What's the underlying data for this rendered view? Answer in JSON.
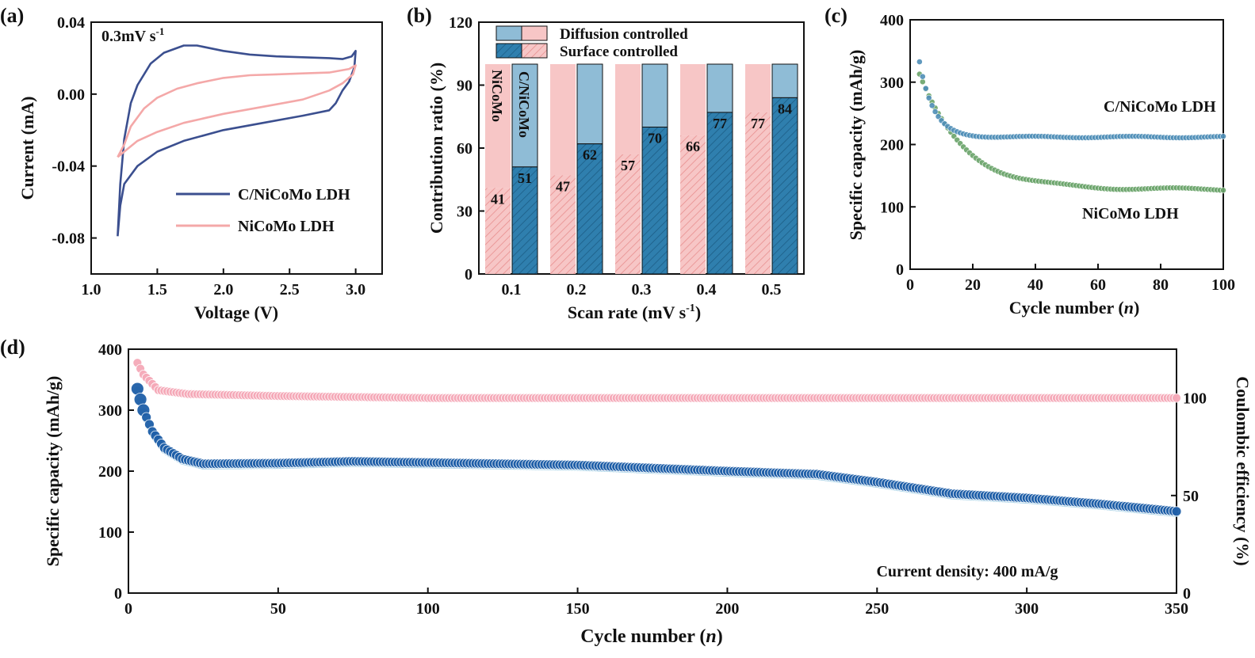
{
  "panels": {
    "a": {
      "letter": "(a)"
    },
    "b": {
      "letter": "(b)"
    },
    "c": {
      "letter": "(c)"
    },
    "d": {
      "letter": "(d)"
    }
  },
  "colors": {
    "blue_dark": "#3b4f8f",
    "pink": "#f4a8a8",
    "bar_pink": "#f7c6c6",
    "bar_pink_hatch": "#e88f8f",
    "bar_blue_light": "#8fbcd6",
    "bar_blue": "#2f7fae",
    "c_blue": "#4f8fb8",
    "c_green": "#6aa46a",
    "d_blue": "#1f5fa8",
    "d_pink": "#f5a9b8"
  },
  "chart_data": [
    {
      "id": "a",
      "type": "line",
      "xlabel": "Voltage (V)",
      "ylabel": "Current (mA)",
      "xlim": [
        1.0,
        3.2
      ],
      "ylim": [
        -0.1,
        0.04
      ],
      "xticks": [
        "1.0",
        "1.5",
        "2.0",
        "2.5",
        "3.0"
      ],
      "yticks": [
        "-0.08",
        "-0.04",
        "0.00",
        "0.04"
      ],
      "annotation_main": "0.3mV s",
      "annotation_sup": "-1",
      "legend": "bottom-right",
      "series": [
        {
          "name": "C/NiCoMo LDH",
          "points": [
            [
              1.2,
              -0.079
            ],
            [
              1.22,
              -0.05
            ],
            [
              1.25,
              -0.025
            ],
            [
              1.3,
              -0.005
            ],
            [
              1.35,
              0.005
            ],
            [
              1.45,
              0.017
            ],
            [
              1.55,
              0.023
            ],
            [
              1.7,
              0.027
            ],
            [
              1.8,
              0.027
            ],
            [
              2.0,
              0.024
            ],
            [
              2.2,
              0.022
            ],
            [
              2.4,
              0.021
            ],
            [
              2.6,
              0.0205
            ],
            [
              2.8,
              0.02
            ],
            [
              2.9,
              0.0195
            ],
            [
              2.97,
              0.021
            ],
            [
              3.0,
              0.024
            ],
            [
              2.99,
              0.015
            ],
            [
              2.95,
              0.007
            ],
            [
              2.9,
              0.002
            ],
            [
              2.85,
              -0.005
            ],
            [
              2.8,
              -0.009
            ],
            [
              2.6,
              -0.012
            ],
            [
              2.3,
              -0.016
            ],
            [
              2.0,
              -0.02
            ],
            [
              1.7,
              -0.026
            ],
            [
              1.5,
              -0.032
            ],
            [
              1.35,
              -0.04
            ],
            [
              1.25,
              -0.05
            ],
            [
              1.22,
              -0.062
            ],
            [
              1.2,
              -0.079
            ]
          ]
        },
        {
          "name": "NiCoMo LDH",
          "points": [
            [
              1.2,
              -0.035
            ],
            [
              1.25,
              -0.028
            ],
            [
              1.3,
              -0.018
            ],
            [
              1.4,
              -0.008
            ],
            [
              1.5,
              -0.002
            ],
            [
              1.65,
              0.003
            ],
            [
              1.8,
              0.006
            ],
            [
              2.0,
              0.009
            ],
            [
              2.2,
              0.0105
            ],
            [
              2.4,
              0.011
            ],
            [
              2.6,
              0.0115
            ],
            [
              2.8,
              0.012
            ],
            [
              2.95,
              0.014
            ],
            [
              3.0,
              0.016
            ],
            [
              2.98,
              0.011
            ],
            [
              2.9,
              0.006
            ],
            [
              2.8,
              0.002
            ],
            [
              2.6,
              -0.003
            ],
            [
              2.3,
              -0.007
            ],
            [
              2.0,
              -0.011
            ],
            [
              1.7,
              -0.016
            ],
            [
              1.5,
              -0.021
            ],
            [
              1.35,
              -0.026
            ],
            [
              1.25,
              -0.032
            ],
            [
              1.2,
              -0.035
            ]
          ]
        }
      ]
    },
    {
      "id": "b",
      "type": "bar",
      "xlabel": "Scan rate (mV s",
      "xlabel_sup": "-1",
      "xlabel_end": ")",
      "ylabel": "Contribution ratio (%)",
      "ylim": [
        0,
        120
      ],
      "yticks": [
        "0",
        "30",
        "60",
        "90",
        "120"
      ],
      "categories": [
        "0.1",
        "0.2",
        "0.3",
        "0.4",
        "0.5"
      ],
      "legend_labels": [
        "Diffusion controlled",
        "Surface controlled"
      ],
      "legend": "top",
      "series": [
        {
          "name": "NiCoMo",
          "surface": [
            41,
            47,
            57,
            66,
            77
          ]
        },
        {
          "name": "C/NiCoMo",
          "surface": [
            51,
            62,
            70,
            77,
            84
          ]
        }
      ],
      "total": 100
    },
    {
      "id": "c",
      "type": "scatter",
      "xlabel_main": "Cycle number (",
      "xlabel_italic": "n",
      "xlabel_end": ")",
      "ylabel": "Specific capacity (mAh/g)",
      "xlim": [
        0,
        100
      ],
      "ylim": [
        0,
        400
      ],
      "xticks": [
        "0",
        "20",
        "40",
        "60",
        "80",
        "100"
      ],
      "yticks": [
        "0",
        "100",
        "200",
        "300",
        "400"
      ],
      "series": [
        {
          "name": "C/NiCoMo LDH",
          "start": 332,
          "plateau": 212,
          "tau": 4.5,
          "drift": 0
        },
        {
          "name": "NiCoMo LDH",
          "start": 312,
          "plateau": 128,
          "tau": 14,
          "drift": 0
        }
      ]
    },
    {
      "id": "d",
      "type": "scatter",
      "xlabel_main": "Cycle number (",
      "xlabel_italic": "n",
      "xlabel_end": ")",
      "ylabel": "Specific capacity (mAh/g)",
      "ylabel_right": "Coulombic efficiency (%)",
      "xlim": [
        0,
        350
      ],
      "ylim": [
        0,
        400
      ],
      "ylim_right": [
        0,
        125
      ],
      "xticks": [
        "0",
        "50",
        "100",
        "150",
        "200",
        "250",
        "300",
        "350"
      ],
      "yticks": [
        "0",
        "100",
        "200",
        "300",
        "400"
      ],
      "yticks_right": [
        "0",
        "50",
        "100"
      ],
      "annotation": "Current density: 400 mA/g",
      "capacity_points": [
        [
          3,
          335
        ],
        [
          5,
          300
        ],
        [
          8,
          265
        ],
        [
          12,
          238
        ],
        [
          18,
          220
        ],
        [
          25,
          212
        ],
        [
          50,
          213
        ],
        [
          75,
          216
        ],
        [
          100,
          214
        ],
        [
          150,
          210
        ],
        [
          200,
          200
        ],
        [
          230,
          195
        ],
        [
          250,
          182
        ],
        [
          275,
          163
        ],
        [
          300,
          156
        ],
        [
          325,
          146
        ],
        [
          350,
          134
        ]
      ],
      "efficiency_points": [
        [
          3,
          118
        ],
        [
          5,
          112
        ],
        [
          10,
          104
        ],
        [
          20,
          102
        ],
        [
          50,
          101
        ],
        [
          100,
          100
        ],
        [
          200,
          100
        ],
        [
          300,
          100
        ],
        [
          350,
          100
        ]
      ]
    }
  ]
}
